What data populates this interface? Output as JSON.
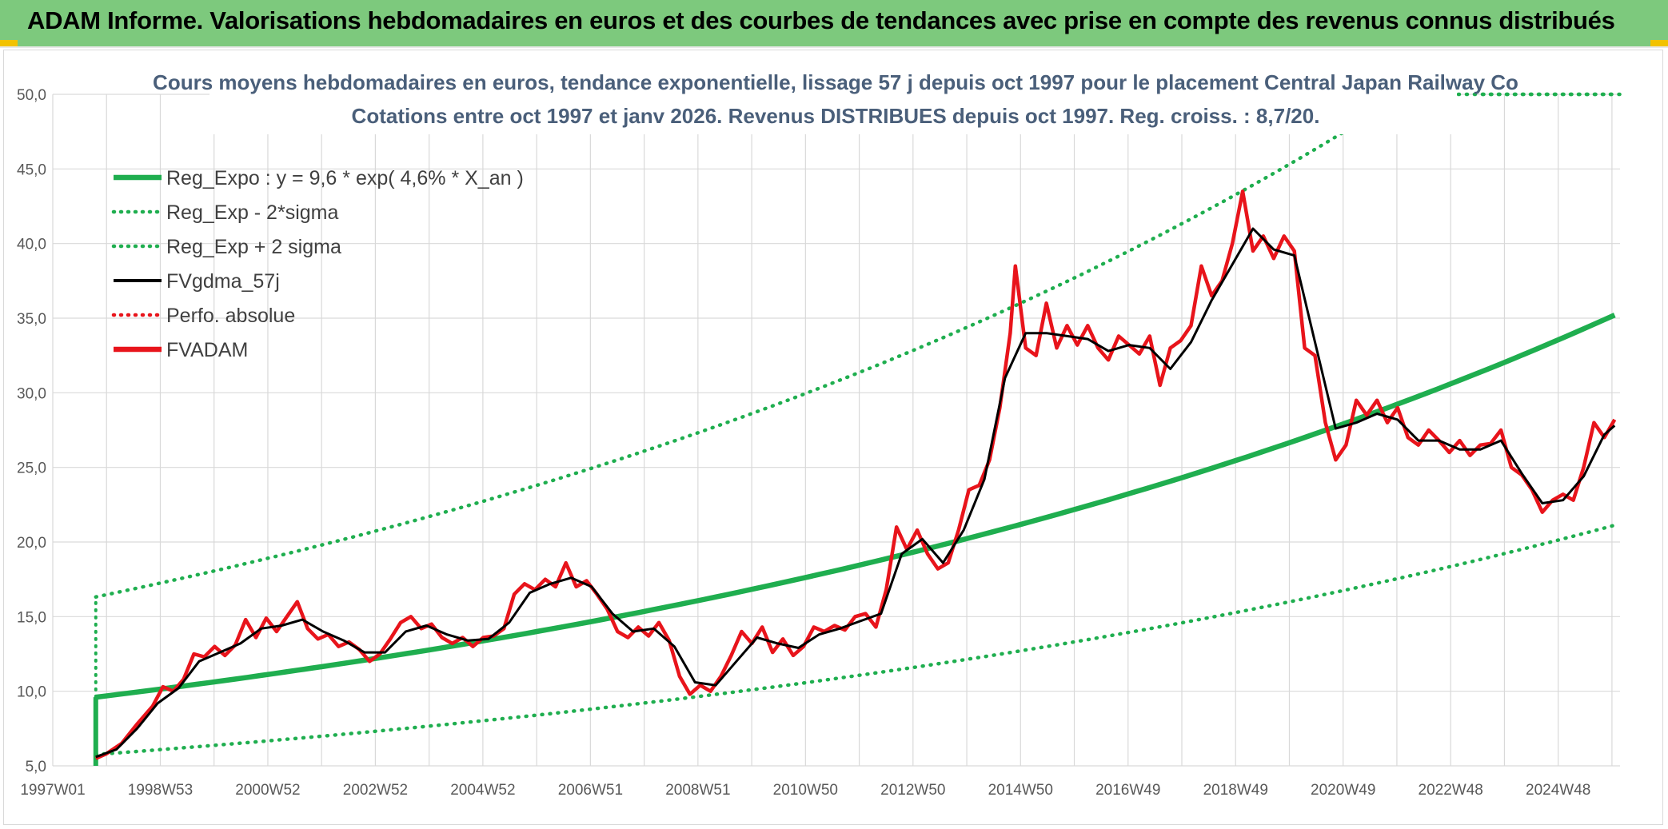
{
  "banner": {
    "title": "ADAM Informe. Valorisations hebdomadaires en euros et des courbes de tendances avec prise en compte des revenus connus distribués"
  },
  "colors": {
    "banner_bg": "#7dc97d",
    "trend_green": "#1fae4f",
    "price_red": "#e8141b",
    "smooth_black": "#000000",
    "grid": "#d9d9d9",
    "title_text": "#4a5f7a"
  },
  "chart_data": {
    "type": "line",
    "title": "Cours moyens hebdomadaires en euros, tendance exponentielle, lissage 57 j depuis oct 1997 pour le placement Central Japan Railway Co",
    "subtitle": "Cotations entre oct 1997 et janv 2026. Revenus DISTRIBUES depuis oct 1997. Reg. croiss. : 8,7/20.",
    "xlabel": "",
    "ylabel": "",
    "ylim": [
      5,
      50
    ],
    "xlim": [
      1997.0,
      2026.15
    ],
    "grid": true,
    "legend_position": "top-left",
    "y_ticks": [
      "5,0",
      "10,0",
      "15,0",
      "20,0",
      "25,0",
      "30,0",
      "35,0",
      "40,0",
      "45,0",
      "50,0"
    ],
    "x_ticks": [
      {
        "label": "1997W01",
        "year": 1997.0
      },
      {
        "label": "1998W53",
        "year": 1999.0
      },
      {
        "label": "2000W52",
        "year": 2001.0
      },
      {
        "label": "2002W52",
        "year": 2003.0
      },
      {
        "label": "2004W52",
        "year": 2005.0
      },
      {
        "label": "2006W51",
        "year": 2007.0
      },
      {
        "label": "2008W51",
        "year": 2009.0
      },
      {
        "label": "2010W50",
        "year": 2011.0
      },
      {
        "label": "2012W50",
        "year": 2013.0
      },
      {
        "label": "2014W50",
        "year": 2015.0
      },
      {
        "label": "2016W49",
        "year": 2017.0
      },
      {
        "label": "2018W49",
        "year": 2019.0
      },
      {
        "label": "2020W49",
        "year": 2021.0
      },
      {
        "label": "2022W48",
        "year": 2023.0
      },
      {
        "label": "2024W48",
        "year": 2025.0
      }
    ],
    "legend": [
      {
        "label": "Reg_Expo : y = 9,6 * exp( 4,6% *  X_an )",
        "style": "solid-thick",
        "color": "#1fae4f"
      },
      {
        "label": "Reg_Exp - 2*sigma",
        "style": "dotted",
        "color": "#1fae4f"
      },
      {
        "label": "Reg_Exp + 2 sigma",
        "style": "dotted",
        "color": "#1fae4f"
      },
      {
        "label": "FVgdma_57j",
        "style": "solid",
        "color": "#000000"
      },
      {
        "label": "Perfo. absolue",
        "style": "dotted",
        "color": "#e8141b"
      },
      {
        "label": "FVADAM",
        "style": "solid-thick",
        "color": "#e8141b"
      }
    ],
    "regression": {
      "a": 9.6,
      "b": 0.046,
      "start_year": 1997.8,
      "end_year": 2026.05
    },
    "bands": {
      "upper_factor": 1.7,
      "lower_factor": 0.6
    },
    "series": [
      {
        "name": "FVADAM",
        "points": [
          [
            1997.8,
            5.5
          ],
          [
            1998.0,
            5.8
          ],
          [
            1998.3,
            6.5
          ],
          [
            1998.6,
            7.8
          ],
          [
            1998.9,
            9.0
          ],
          [
            1999.1,
            10.3
          ],
          [
            1999.3,
            10.0
          ],
          [
            1999.5,
            10.8
          ],
          [
            1999.7,
            12.5
          ],
          [
            1999.9,
            12.3
          ],
          [
            2000.1,
            13.0
          ],
          [
            2000.3,
            12.4
          ],
          [
            2000.5,
            13.1
          ],
          [
            2000.7,
            14.8
          ],
          [
            2000.9,
            13.6
          ],
          [
            2001.1,
            14.9
          ],
          [
            2001.3,
            14.0
          ],
          [
            2001.5,
            15.0
          ],
          [
            2001.7,
            16.0
          ],
          [
            2001.9,
            14.2
          ],
          [
            2002.1,
            13.5
          ],
          [
            2002.3,
            13.8
          ],
          [
            2002.5,
            13.0
          ],
          [
            2002.7,
            13.3
          ],
          [
            2002.9,
            12.8
          ],
          [
            2003.1,
            12.0
          ],
          [
            2003.3,
            12.5
          ],
          [
            2003.5,
            13.5
          ],
          [
            2003.7,
            14.6
          ],
          [
            2003.9,
            15.0
          ],
          [
            2004.1,
            14.2
          ],
          [
            2004.3,
            14.5
          ],
          [
            2004.5,
            13.6
          ],
          [
            2004.7,
            13.2
          ],
          [
            2004.9,
            13.6
          ],
          [
            2005.1,
            13.0
          ],
          [
            2005.3,
            13.6
          ],
          [
            2005.5,
            13.7
          ],
          [
            2005.7,
            14.2
          ],
          [
            2005.9,
            16.5
          ],
          [
            2006.1,
            17.2
          ],
          [
            2006.3,
            16.8
          ],
          [
            2006.5,
            17.5
          ],
          [
            2006.7,
            17.0
          ],
          [
            2006.9,
            18.6
          ],
          [
            2007.1,
            17.0
          ],
          [
            2007.3,
            17.4
          ],
          [
            2007.5,
            16.5
          ],
          [
            2007.7,
            15.5
          ],
          [
            2007.9,
            14.0
          ],
          [
            2008.1,
            13.6
          ],
          [
            2008.3,
            14.3
          ],
          [
            2008.5,
            13.7
          ],
          [
            2008.7,
            14.6
          ],
          [
            2008.9,
            13.4
          ],
          [
            2009.1,
            11.0
          ],
          [
            2009.3,
            9.8
          ],
          [
            2009.5,
            10.4
          ],
          [
            2009.7,
            10.0
          ],
          [
            2009.9,
            11.0
          ],
          [
            2010.1,
            12.4
          ],
          [
            2010.3,
            14.0
          ],
          [
            2010.5,
            13.2
          ],
          [
            2010.7,
            14.3
          ],
          [
            2010.9,
            12.6
          ],
          [
            2011.1,
            13.5
          ],
          [
            2011.3,
            12.4
          ],
          [
            2011.5,
            13.0
          ],
          [
            2011.7,
            14.3
          ],
          [
            2011.9,
            14.0
          ],
          [
            2012.1,
            14.4
          ],
          [
            2012.3,
            14.1
          ],
          [
            2012.5,
            15.0
          ],
          [
            2012.7,
            15.2
          ],
          [
            2012.9,
            14.3
          ],
          [
            2013.1,
            16.8
          ],
          [
            2013.3,
            21.0
          ],
          [
            2013.5,
            19.5
          ],
          [
            2013.7,
            20.8
          ],
          [
            2013.9,
            19.2
          ],
          [
            2014.1,
            18.2
          ],
          [
            2014.3,
            18.6
          ],
          [
            2014.5,
            20.8
          ],
          [
            2014.7,
            23.5
          ],
          [
            2014.9,
            23.8
          ],
          [
            2015.1,
            25.5
          ],
          [
            2015.3,
            29.0
          ],
          [
            2015.5,
            34.0
          ],
          [
            2015.6,
            38.5
          ],
          [
            2015.8,
            33.0
          ],
          [
            2016.0,
            32.5
          ],
          [
            2016.2,
            36.0
          ],
          [
            2016.4,
            33.0
          ],
          [
            2016.6,
            34.5
          ],
          [
            2016.8,
            33.2
          ],
          [
            2017.0,
            34.5
          ],
          [
            2017.2,
            33.0
          ],
          [
            2017.4,
            32.2
          ],
          [
            2017.6,
            33.8
          ],
          [
            2017.8,
            33.2
          ],
          [
            2018.0,
            32.6
          ],
          [
            2018.2,
            33.8
          ],
          [
            2018.4,
            30.5
          ],
          [
            2018.6,
            33.0
          ],
          [
            2018.8,
            33.5
          ],
          [
            2019.0,
            34.5
          ],
          [
            2019.2,
            38.5
          ],
          [
            2019.4,
            36.5
          ],
          [
            2019.6,
            37.5
          ],
          [
            2019.8,
            40.0
          ],
          [
            2020.0,
            43.5
          ],
          [
            2020.2,
            39.5
          ],
          [
            2020.4,
            40.5
          ],
          [
            2020.6,
            39.0
          ],
          [
            2020.8,
            40.5
          ],
          [
            2021.0,
            39.5
          ],
          [
            2021.2,
            33.0
          ],
          [
            2021.4,
            32.5
          ],
          [
            2021.6,
            28.0
          ],
          [
            2021.8,
            25.5
          ],
          [
            2022.0,
            26.5
          ],
          [
            2022.2,
            29.5
          ],
          [
            2022.4,
            28.5
          ],
          [
            2022.6,
            29.5
          ],
          [
            2022.8,
            28.0
          ],
          [
            2023.0,
            29.0
          ],
          [
            2023.2,
            27.0
          ],
          [
            2023.4,
            26.5
          ],
          [
            2023.6,
            27.5
          ],
          [
            2023.8,
            26.8
          ],
          [
            2024.0,
            26.0
          ],
          [
            2024.2,
            26.8
          ],
          [
            2024.4,
            25.8
          ],
          [
            2024.6,
            26.5
          ],
          [
            2024.8,
            26.6
          ],
          [
            2025.0,
            27.5
          ],
          [
            2025.2,
            25.0
          ],
          [
            2025.4,
            24.5
          ],
          [
            2025.6,
            23.5
          ],
          [
            2025.8,
            22.0
          ],
          [
            2026.0,
            22.8
          ],
          [
            2026.2,
            23.2
          ],
          [
            2026.4,
            22.8
          ],
          [
            2026.6,
            25.0
          ],
          [
            2026.8,
            28.0
          ],
          [
            2027.0,
            27.0
          ],
          [
            2027.2,
            28.2
          ]
        ]
      },
      {
        "name": "FVgdma_57j",
        "points": [
          [
            1997.8,
            5.6
          ],
          [
            1998.2,
            6.1
          ],
          [
            1998.6,
            7.5
          ],
          [
            1999.0,
            9.2
          ],
          [
            1999.4,
            10.2
          ],
          [
            1999.8,
            12.0
          ],
          [
            2000.2,
            12.6
          ],
          [
            2000.6,
            13.2
          ],
          [
            2001.0,
            14.2
          ],
          [
            2001.4,
            14.4
          ],
          [
            2001.8,
            14.8
          ],
          [
            2002.2,
            14.0
          ],
          [
            2002.6,
            13.4
          ],
          [
            2003.0,
            12.6
          ],
          [
            2003.4,
            12.6
          ],
          [
            2003.8,
            14.0
          ],
          [
            2004.2,
            14.4
          ],
          [
            2004.6,
            13.8
          ],
          [
            2005.0,
            13.4
          ],
          [
            2005.4,
            13.5
          ],
          [
            2005.8,
            14.6
          ],
          [
            2006.2,
            16.6
          ],
          [
            2006.6,
            17.2
          ],
          [
            2007.0,
            17.6
          ],
          [
            2007.4,
            17.0
          ],
          [
            2007.8,
            15.2
          ],
          [
            2008.2,
            14.0
          ],
          [
            2008.6,
            14.2
          ],
          [
            2009.0,
            13.0
          ],
          [
            2009.4,
            10.6
          ],
          [
            2009.8,
            10.4
          ],
          [
            2010.2,
            12.0
          ],
          [
            2010.6,
            13.6
          ],
          [
            2011.0,
            13.2
          ],
          [
            2011.4,
            12.9
          ],
          [
            2011.8,
            13.8
          ],
          [
            2012.2,
            14.2
          ],
          [
            2012.6,
            14.7
          ],
          [
            2013.0,
            15.2
          ],
          [
            2013.4,
            19.2
          ],
          [
            2013.8,
            20.2
          ],
          [
            2014.2,
            18.6
          ],
          [
            2014.6,
            20.8
          ],
          [
            2015.0,
            24.2
          ],
          [
            2015.4,
            31.0
          ],
          [
            2015.8,
            34.0
          ],
          [
            2016.2,
            34.0
          ],
          [
            2016.6,
            33.8
          ],
          [
            2017.0,
            33.6
          ],
          [
            2017.4,
            32.8
          ],
          [
            2017.8,
            33.2
          ],
          [
            2018.2,
            33.0
          ],
          [
            2018.6,
            31.6
          ],
          [
            2019.0,
            33.4
          ],
          [
            2019.4,
            36.2
          ],
          [
            2019.8,
            38.6
          ],
          [
            2020.2,
            41.0
          ],
          [
            2020.6,
            39.6
          ],
          [
            2021.0,
            39.2
          ],
          [
            2021.4,
            33.4
          ],
          [
            2021.8,
            27.6
          ],
          [
            2022.2,
            28.0
          ],
          [
            2022.6,
            28.6
          ],
          [
            2023.0,
            28.2
          ],
          [
            2023.4,
            26.8
          ],
          [
            2023.8,
            26.8
          ],
          [
            2024.2,
            26.2
          ],
          [
            2024.6,
            26.2
          ],
          [
            2025.0,
            26.8
          ],
          [
            2025.4,
            24.6
          ],
          [
            2025.8,
            22.6
          ],
          [
            2026.2,
            22.8
          ],
          [
            2026.6,
            24.4
          ],
          [
            2027.0,
            27.2
          ],
          [
            2027.2,
            27.8
          ]
        ]
      }
    ]
  }
}
